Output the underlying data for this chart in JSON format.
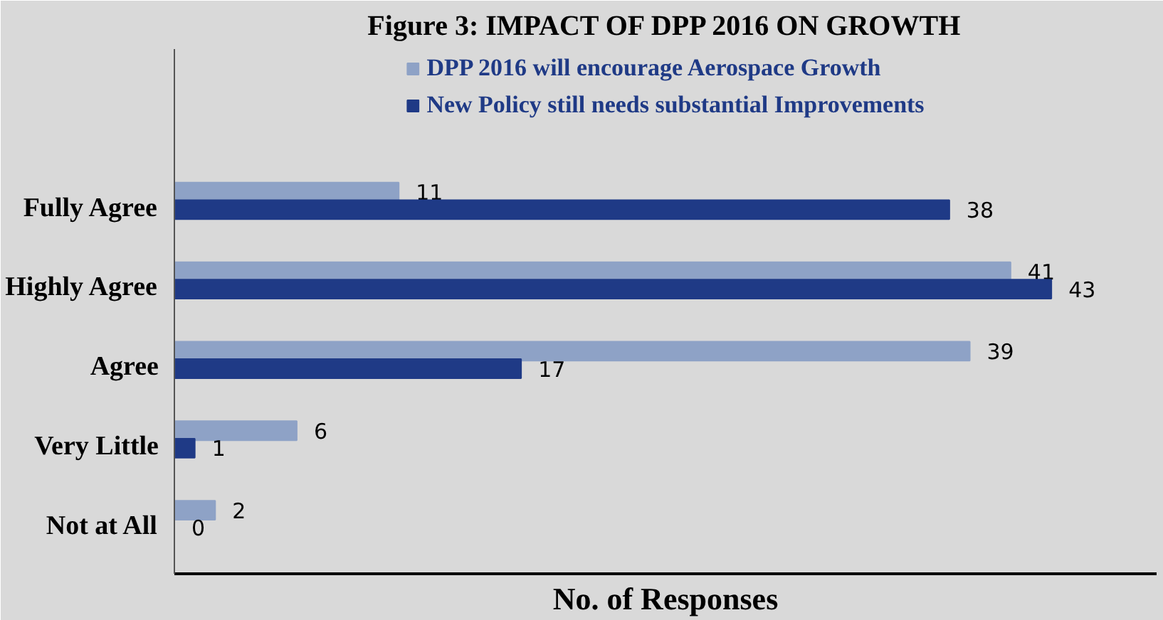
{
  "chart_data": {
    "type": "bar",
    "orientation": "horizontal",
    "title": "Figure 3: IMPACT OF DPP 2016 ON GROWTH",
    "xlabel": "No. of Responses",
    "categories": [
      "Fully Agree",
      "Highly Agree",
      "Agree",
      "Very Little",
      "Not at All"
    ],
    "series": [
      {
        "name": "DPP 2016 will encourage Aerospace Growth",
        "color": "#8ea2c6",
        "values": [
          11,
          41,
          39,
          6,
          2
        ]
      },
      {
        "name": "New Policy still needs substantial Improvements",
        "color": "#1f3a86",
        "values": [
          38,
          43,
          17,
          1,
          0
        ]
      }
    ],
    "data_labels": true,
    "legend": "top",
    "grid": false
  }
}
